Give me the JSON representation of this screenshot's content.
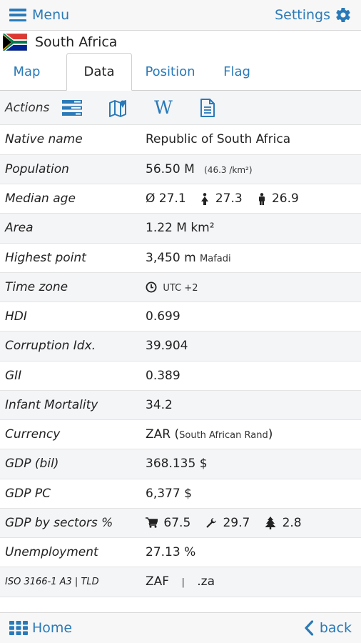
{
  "header": {
    "menu_label": "Menu",
    "settings_label": "Settings"
  },
  "country": {
    "name": "South Africa"
  },
  "tabs": {
    "map": "Map",
    "data": "Data",
    "position": "Position",
    "flag": "Flag"
  },
  "actions": {
    "label": "Actions",
    "wiki_glyph": "W"
  },
  "rows": {
    "native_name": {
      "label": "Native name",
      "value": "Republic of South Africa"
    },
    "population": {
      "label": "Population",
      "value": "56.50 M",
      "density": "(46.3 /km²)"
    },
    "median_age": {
      "label": "Median age",
      "avg": "Ø 27.1",
      "male": "27.3",
      "female": "26.9"
    },
    "area": {
      "label": "Area",
      "value": "1.22 M km²"
    },
    "highest_point": {
      "label": "Highest point",
      "value": "3,450 m",
      "name": "Mafadi"
    },
    "time_zone": {
      "label": "Time zone",
      "value": "UTC +2"
    },
    "hdi": {
      "label": "HDI",
      "value": "0.699"
    },
    "corruption": {
      "label": "Corruption Idx.",
      "value": "39.904"
    },
    "gii": {
      "label": "GII",
      "value": "0.389"
    },
    "infant_mortality": {
      "label": "Infant Mortality",
      "value": "34.2"
    },
    "currency": {
      "label": "Currency",
      "code": "ZAR (",
      "name": "South African Rand",
      "close": ")"
    },
    "gdp_bil": {
      "label": "GDP (bil)",
      "value": "368.135 $"
    },
    "gdp_pc": {
      "label": "GDP PC",
      "value": "6,377 $"
    },
    "gdp_sectors": {
      "label": "GDP by sectors %",
      "services": "67.5",
      "industry": "29.7",
      "agriculture": "2.8"
    },
    "unemployment": {
      "label": "Unemployment",
      "value": "27.13 %"
    },
    "iso": {
      "label": "ISO 3166-1 A3 | TLD",
      "code": "ZAF",
      "separator": "|",
      "tld": ".za"
    }
  },
  "footer": {
    "home_label": "Home",
    "back_label": "back"
  },
  "colors": {
    "accent": "#2a7ab8"
  }
}
